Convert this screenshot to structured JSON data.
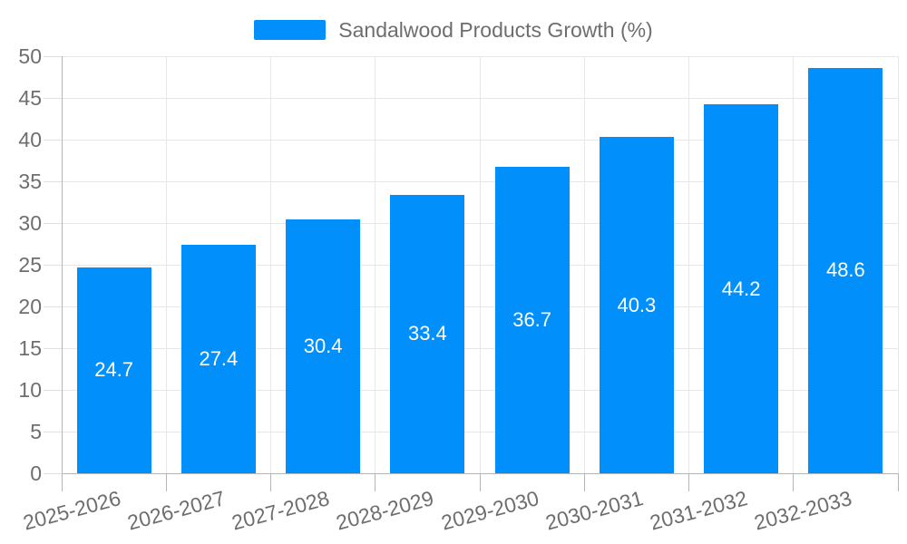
{
  "legend": {
    "label": "Sandalwood Products Growth (%)",
    "swatch_color": "#008FFB"
  },
  "chart_data": {
    "type": "bar",
    "title": "Sandalwood Products Growth (%)",
    "categories": [
      "2025-2026",
      "2026-2027",
      "2027-2028",
      "2028-2029",
      "2029-2030",
      "2030-2031",
      "2031-2032",
      "2032-2033"
    ],
    "series": [
      {
        "name": "Sandalwood Products Growth (%)",
        "values": [
          24.7,
          27.4,
          30.4,
          33.4,
          36.7,
          40.3,
          44.2,
          48.6
        ]
      }
    ],
    "data_labels": [
      "24.7",
      "27.4",
      "30.4",
      "33.4",
      "36.7",
      "40.3",
      "44.2",
      "48.6"
    ],
    "xlabel": "",
    "ylabel": "",
    "ylim": [
      0,
      50
    ],
    "yticks": [
      0,
      5,
      10,
      15,
      20,
      25,
      30,
      35,
      40,
      45,
      50
    ],
    "grid": "on",
    "legend_position": "top",
    "colors": {
      "bar": "#008FFB",
      "data_label": "#ffffff",
      "axis_label": "#6e6e6e",
      "gridline": "#e7e7e7",
      "axis_line": "#b6b6b6"
    }
  }
}
